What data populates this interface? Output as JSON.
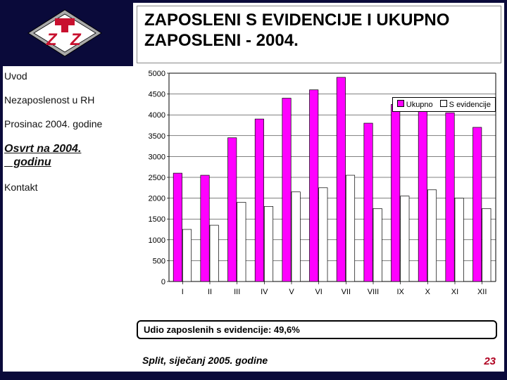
{
  "title": "ZAPOSLENI S EVIDENCIJE I UKUPNO ZAPOSLENI - 2004.",
  "nav": {
    "items": [
      {
        "label": "Uvod",
        "active": false
      },
      {
        "label": "Nezaposlenost u RH",
        "active": false
      },
      {
        "label": "Prosinac 2004. godine",
        "active": false
      },
      {
        "label": "Osvrt na 2004. godinu",
        "active": true
      },
      {
        "label": "Kontakt",
        "active": false
      }
    ]
  },
  "chart": {
    "type": "grouped-bar",
    "ylim": [
      0,
      5000
    ],
    "ytick_step": 500,
    "yticks": [
      0,
      500,
      1000,
      1500,
      2000,
      2500,
      3000,
      3500,
      4000,
      4500,
      5000
    ],
    "categories": [
      "I",
      "II",
      "III",
      "IV",
      "V",
      "VI",
      "VII",
      "VIII",
      "IX",
      "X",
      "XI",
      "XII"
    ],
    "series": [
      {
        "name": "Ukupno",
        "color": "#ff00ff",
        "values": [
          2600,
          2550,
          3450,
          3900,
          4400,
          4600,
          4900,
          3800,
          4250,
          4400,
          4050,
          3700
        ]
      },
      {
        "name": "S evidencije",
        "color": "#ffffff",
        "values": [
          1250,
          1350,
          1900,
          1800,
          2150,
          2250,
          2550,
          1750,
          2050,
          2200,
          2000,
          1750
        ]
      }
    ],
    "background_color": "#ffffff",
    "grid_color": "#000000",
    "axis_fontsize": 11,
    "bar_group_width": 0.68,
    "bar_gap": 0.02
  },
  "legend": {
    "items": [
      {
        "label": "Ukupno",
        "color": "#ff00ff"
      },
      {
        "label": "S evidencije",
        "color": "#ffffff"
      }
    ]
  },
  "footer": {
    "box_text": "Udio zaposlenih s evidencije: 49,6%",
    "location_date": "Split, siječanj 2005. godine",
    "page_number": "23"
  },
  "colors": {
    "frame": "#0a0a3a",
    "accent_red": "#b00020",
    "logo_gray": "#a9a9a9"
  }
}
